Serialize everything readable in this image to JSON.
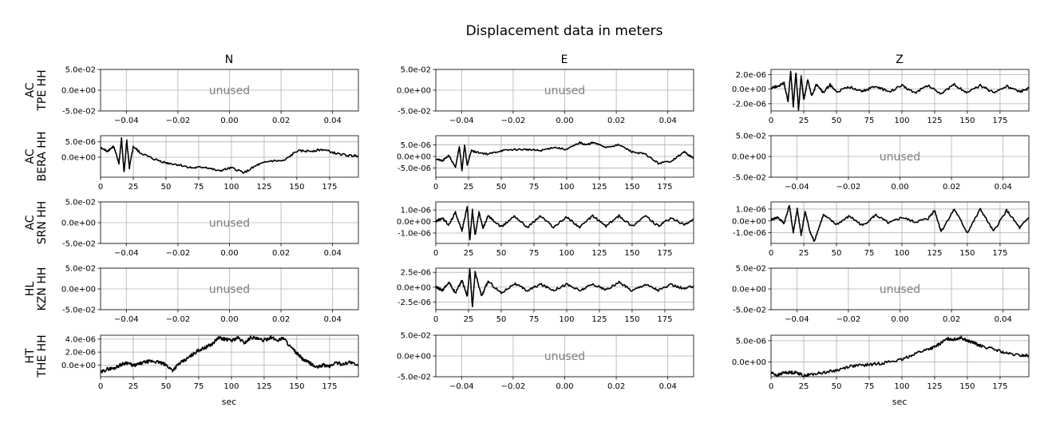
{
  "title": "Displacement data in meters",
  "xlabel": "sec",
  "unused_label": "unused",
  "columns": [
    "N",
    "E",
    "Z"
  ],
  "rows": [
    {
      "network": "AC",
      "station": "TPE HH"
    },
    {
      "network": "AC",
      "station": "BERA HH"
    },
    {
      "network": "AC",
      "station": "SRN HH"
    },
    {
      "network": "HL",
      "station": "KZN HH"
    },
    {
      "network": "HT",
      "station": "THE HH"
    }
  ],
  "chart_data": {
    "type": "line",
    "grid": true,
    "xlabel": "sec",
    "unused_xlim": [
      -0.05,
      0.05
    ],
    "unused_xticks": [
      -0.04,
      -0.02,
      0.0,
      0.02,
      0.04
    ],
    "unused_xtick_labels": [
      "−0.04",
      "−0.02",
      "0.00",
      "0.02",
      "0.04"
    ],
    "unused_ylim": [
      -0.05,
      0.05
    ],
    "unused_yticks": [
      0.05,
      0.0,
      -0.05
    ],
    "unused_ytick_labels": [
      "5.0e-02",
      "0.0e+00",
      "-5.0e-02"
    ],
    "data_xlim": [
      0,
      197
    ],
    "data_xticks": [
      0,
      25,
      50,
      75,
      100,
      125,
      150,
      175
    ],
    "data_xtick_labels": [
      "0",
      "25",
      "50",
      "75",
      "100",
      "125",
      "150",
      "175"
    ],
    "panels": [
      {
        "row": 0,
        "col": 0,
        "unused": true
      },
      {
        "row": 0,
        "col": 1,
        "unused": true
      },
      {
        "row": 0,
        "col": 2,
        "unused": false,
        "ylim": [
          -3e-06,
          2.7e-06
        ],
        "yticks": [
          2e-06,
          0.0,
          -2e-06
        ],
        "ytick_labels": [
          "2.0e-06",
          "0.0e+00",
          "-2.0e-06"
        ],
        "x": [
          0,
          5,
          10,
          13,
          15,
          17,
          19,
          21,
          23,
          25,
          28,
          31,
          35,
          40,
          45,
          50,
          60,
          70,
          80,
          90,
          100,
          110,
          120,
          130,
          140,
          150,
          160,
          170,
          180,
          190,
          197
        ],
        "y": [
          2e-07,
          4e-07,
          8e-07,
          -1.8e-06,
          2.5e-06,
          -2.4e-06,
          2.3e-06,
          -2.8e-06,
          1.8e-06,
          -1.5e-06,
          1.2e-06,
          -9e-07,
          7e-07,
          -5e-07,
          6e-07,
          -4e-07,
          3e-07,
          -3e-07,
          4e-07,
          -4e-07,
          5e-07,
          -5e-07,
          5e-07,
          -6e-07,
          6e-07,
          -5e-07,
          5e-07,
          -5e-07,
          4e-07,
          -4e-07,
          1e-07
        ]
      },
      {
        "row": 1,
        "col": 0,
        "unused": false,
        "ylim": [
          -6.5e-06,
          7e-06
        ],
        "yticks": [
          5e-06,
          0.0
        ],
        "ytick_labels": [
          "5.0e-06",
          "0.0e+00"
        ],
        "x": [
          0,
          5,
          10,
          14,
          16,
          18,
          20,
          22,
          25,
          30,
          40,
          50,
          60,
          70,
          80,
          90,
          100,
          110,
          120,
          130,
          140,
          150,
          160,
          170,
          180,
          190,
          197
        ],
        "y": [
          3e-06,
          2e-06,
          3.5e-06,
          -2e-06,
          6e-06,
          -5e-06,
          5.5e-06,
          -3.5e-06,
          3.5e-06,
          1.5e-06,
          -5e-07,
          -1.8e-06,
          -2.5e-06,
          -3.5e-06,
          -3.2e-06,
          -4.5e-06,
          -3.5e-06,
          -5e-06,
          -2.5e-06,
          -1.2e-06,
          -1.2e-06,
          2e-06,
          2e-06,
          2.5e-06,
          1.2e-06,
          5e-07,
          5e-07
        ]
      },
      {
        "row": 1,
        "col": 1,
        "unused": false,
        "ylim": [
          -9e-06,
          9e-06
        ],
        "yticks": [
          5e-06,
          0.0,
          -5e-06
        ],
        "ytick_labels": [
          "5.0e-06",
          "0.0e+00",
          "-5.0e-06"
        ],
        "x": [
          0,
          5,
          10,
          15,
          18,
          20,
          22,
          24,
          27,
          30,
          40,
          50,
          60,
          70,
          80,
          90,
          100,
          110,
          115,
          120,
          130,
          140,
          150,
          160,
          170,
          180,
          190,
          197
        ],
        "y": [
          -1e-06,
          -2e-06,
          5e-07,
          -5e-06,
          4.5e-06,
          -6e-06,
          5e-06,
          -4e-06,
          2.5e-06,
          2e-06,
          1e-06,
          2.5e-06,
          3e-06,
          3e-06,
          2.5e-06,
          4e-06,
          3e-06,
          6e-06,
          5e-06,
          6e-06,
          4e-06,
          5e-06,
          2e-06,
          1e-06,
          -3e-06,
          -2e-06,
          2e-06,
          -1e-06
        ]
      },
      {
        "row": 1,
        "col": 2,
        "unused": true
      },
      {
        "row": 2,
        "col": 0,
        "unused": true
      },
      {
        "row": 2,
        "col": 1,
        "unused": false,
        "ylim": [
          -1.9e-06,
          1.7e-06
        ],
        "yticks": [
          1e-06,
          0.0,
          -1e-06
        ],
        "ytick_labels": [
          "1.0e-06",
          "0.0e+00",
          "-1.0e-06"
        ],
        "x": [
          0,
          5,
          10,
          15,
          20,
          24,
          26,
          28,
          30,
          33,
          36,
          40,
          50,
          60,
          70,
          80,
          90,
          100,
          110,
          120,
          130,
          140,
          150,
          160,
          170,
          180,
          190,
          197
        ],
        "y": [
          0.0,
          3e-07,
          -3e-07,
          8e-07,
          -8e-07,
          1.3e-06,
          -1.6e-06,
          1e-06,
          -1.2e-06,
          8e-07,
          -6e-07,
          5e-07,
          -5e-07,
          5e-07,
          -5e-07,
          5e-07,
          -5e-07,
          4e-07,
          -5e-07,
          5e-07,
          -4e-07,
          5e-07,
          -4e-07,
          5e-07,
          -4e-07,
          3e-07,
          -3e-07,
          2e-07
        ]
      },
      {
        "row": 2,
        "col": 2,
        "unused": false,
        "ylim": [
          -1.9e-06,
          1.6e-06
        ],
        "yticks": [
          1e-06,
          0.0,
          -1e-06
        ],
        "ytick_labels": [
          "1.0e-06",
          "0.0e+00",
          "-1.0e-06"
        ],
        "x": [
          0,
          5,
          10,
          14,
          17,
          20,
          23,
          26,
          30,
          33,
          40,
          50,
          60,
          70,
          80,
          90,
          100,
          110,
          120,
          125,
          130,
          140,
          150,
          160,
          170,
          180,
          190,
          197
        ],
        "y": [
          1e-07,
          3e-07,
          -2e-07,
          1.3e-06,
          -1e-06,
          1e-06,
          -1.2e-06,
          8e-07,
          -1e-06,
          -1.7e-06,
          5e-07,
          -3e-07,
          4e-07,
          -4e-07,
          5e-07,
          -2e-07,
          3e-07,
          -1e-07,
          2e-07,
          9e-07,
          -9e-07,
          1e-06,
          -1e-06,
          1e-06,
          -9e-07,
          9e-07,
          -6e-07,
          3e-07
        ]
      },
      {
        "row": 3,
        "col": 0,
        "unused": true
      },
      {
        "row": 3,
        "col": 1,
        "unused": false,
        "ylim": [
          -3.8e-06,
          3.2e-06
        ],
        "yticks": [
          2.5e-06,
          0.0,
          -2.5e-06
        ],
        "ytick_labels": [
          "2.5e-06",
          "0.0e+00",
          "-2.5e-06"
        ],
        "x": [
          0,
          5,
          10,
          15,
          20,
          24,
          26,
          28,
          30,
          35,
          40,
          50,
          60,
          70,
          80,
          90,
          100,
          110,
          120,
          130,
          140,
          150,
          160,
          170,
          180,
          190,
          197
        ],
        "y": [
          0.0,
          -5e-07,
          8e-07,
          -1e-06,
          1.2e-06,
          -1.5e-06,
          3e-06,
          -3.5e-06,
          2.5e-06,
          -1.5e-06,
          1e-06,
          -1e-06,
          6e-07,
          -6e-07,
          5e-07,
          -5e-07,
          5e-07,
          -6e-07,
          5e-07,
          -5e-07,
          8e-07,
          -6e-07,
          5e-07,
          -5e-07,
          4e-07,
          -3e-07,
          2e-07
        ]
      },
      {
        "row": 3,
        "col": 2,
        "unused": true
      },
      {
        "row": 4,
        "col": 0,
        "unused": false,
        "ylim": [
          -1.8e-06,
          4.6e-06
        ],
        "yticks": [
          4e-06,
          2e-06,
          0.0
        ],
        "ytick_labels": [
          "4.0e-06",
          "2.0e-06",
          "0.0e+00"
        ],
        "x": [
          0,
          5,
          10,
          15,
          20,
          25,
          30,
          35,
          40,
          45,
          50,
          55,
          60,
          65,
          70,
          75,
          80,
          85,
          90,
          95,
          100,
          105,
          110,
          115,
          120,
          125,
          130,
          135,
          140,
          145,
          150,
          155,
          160,
          165,
          170,
          175,
          180,
          185,
          190,
          197
        ],
        "y": [
          -1.2e-06,
          -6e-07,
          -5e-07,
          0.0,
          4e-07,
          -1e-07,
          2e-07,
          5e-07,
          6e-07,
          4e-07,
          0.0,
          -8e-07,
          2e-07,
          8e-07,
          1.6e-06,
          2.3e-06,
          2.7e-06,
          3.2e-06,
          4.2e-06,
          4e-06,
          3.8e-06,
          4.2e-06,
          3.4e-06,
          4.3e-06,
          4e-06,
          3.8e-06,
          4.3e-06,
          3.8e-06,
          4.2e-06,
          2.8e-06,
          1.8e-06,
          8e-07,
          3e-07,
          -4e-07,
          0.0,
          -2e-07,
          4e-07,
          1e-07,
          5e-07,
          -2e-07
        ]
      },
      {
        "row": 4,
        "col": 1,
        "unused": true
      },
      {
        "row": 4,
        "col": 2,
        "unused": false,
        "ylim": [
          -3.5e-06,
          6.3e-06
        ],
        "yticks": [
          5e-06,
          0.0
        ],
        "ytick_labels": [
          "5.0e-06",
          "0.0e+00"
        ],
        "x": [
          0,
          5,
          10,
          15,
          20,
          25,
          30,
          40,
          50,
          60,
          70,
          80,
          90,
          100,
          110,
          120,
          125,
          130,
          135,
          140,
          145,
          150,
          155,
          160,
          170,
          180,
          190,
          197
        ],
        "y": [
          -2.5e-06,
          -3.2e-06,
          -2.5e-06,
          -2.5e-06,
          -2.5e-06,
          -3.3e-06,
          -3e-06,
          -2.5e-06,
          -2e-06,
          -1e-06,
          -8e-07,
          -5e-07,
          0.0,
          5e-07,
          2e-06,
          3e-06,
          3.5e-06,
          4.5e-06,
          5.5e-06,
          5.3e-06,
          5.8e-06,
          5e-06,
          4.5e-06,
          3.8e-06,
          3e-06,
          2e-06,
          1.5e-06,
          1.5e-06
        ]
      }
    ]
  }
}
